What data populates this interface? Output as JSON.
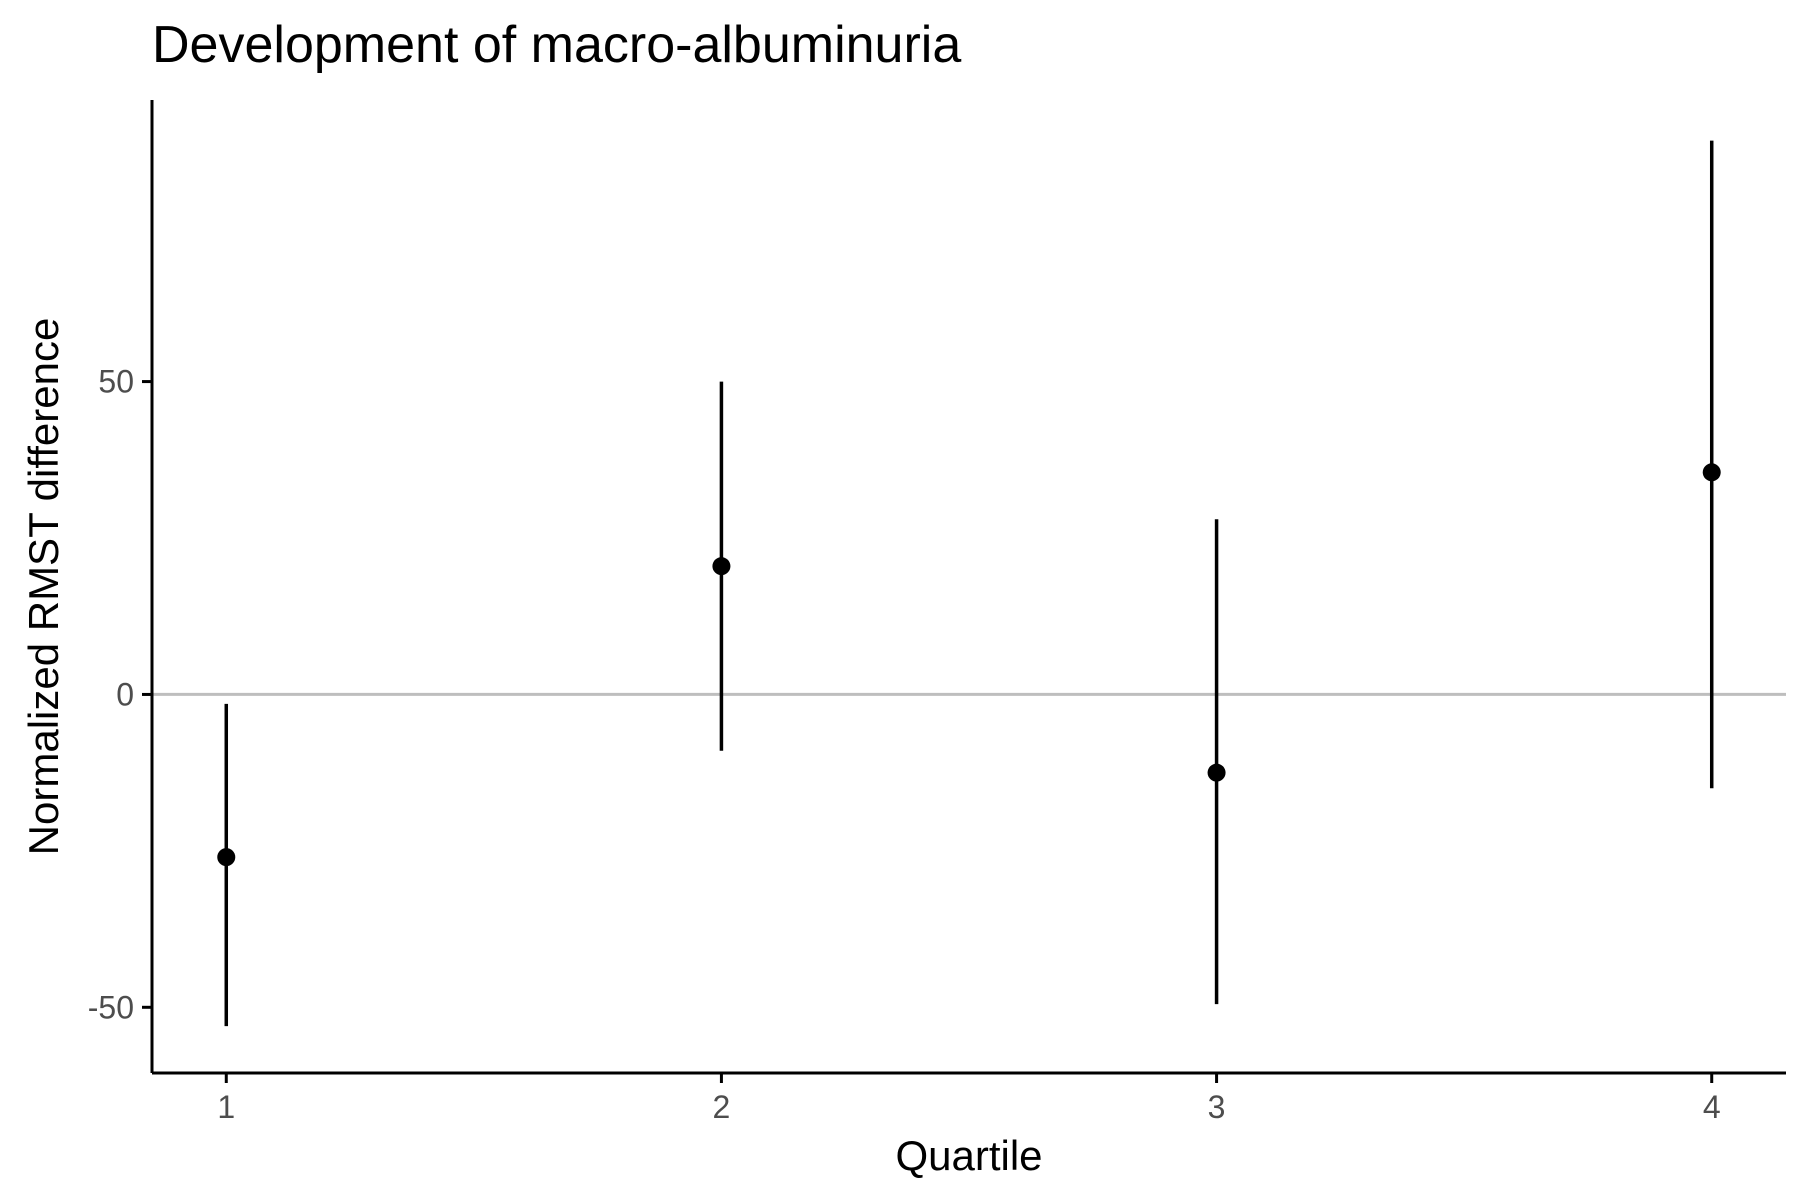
{
  "chart_data": {
    "type": "scatter",
    "title": "Development of macro-albuminuria",
    "xlabel": "Quartile",
    "ylabel": "Normalized RMST difference",
    "x": [
      1,
      2,
      3,
      4
    ],
    "x_ticks": [
      "1",
      "2",
      "3",
      "4"
    ],
    "y_ticks": [
      "-50",
      "0",
      "50"
    ],
    "xlim": [
      0.85,
      4.15
    ],
    "ylim": [
      -60.5,
      95
    ],
    "reference_line": 0,
    "series": [
      {
        "values": [
          -26.0,
          20.5,
          -12.5,
          35.5
        ],
        "lower": [
          -53.0,
          -9.0,
          -49.5,
          -15.0
        ],
        "upper": [
          -1.5,
          50.0,
          28.0,
          88.5
        ]
      }
    ],
    "grid": false,
    "legend": "none",
    "colors": {
      "point": "#000000",
      "reference_line": "#bebebe",
      "axis": "#000000"
    }
  }
}
